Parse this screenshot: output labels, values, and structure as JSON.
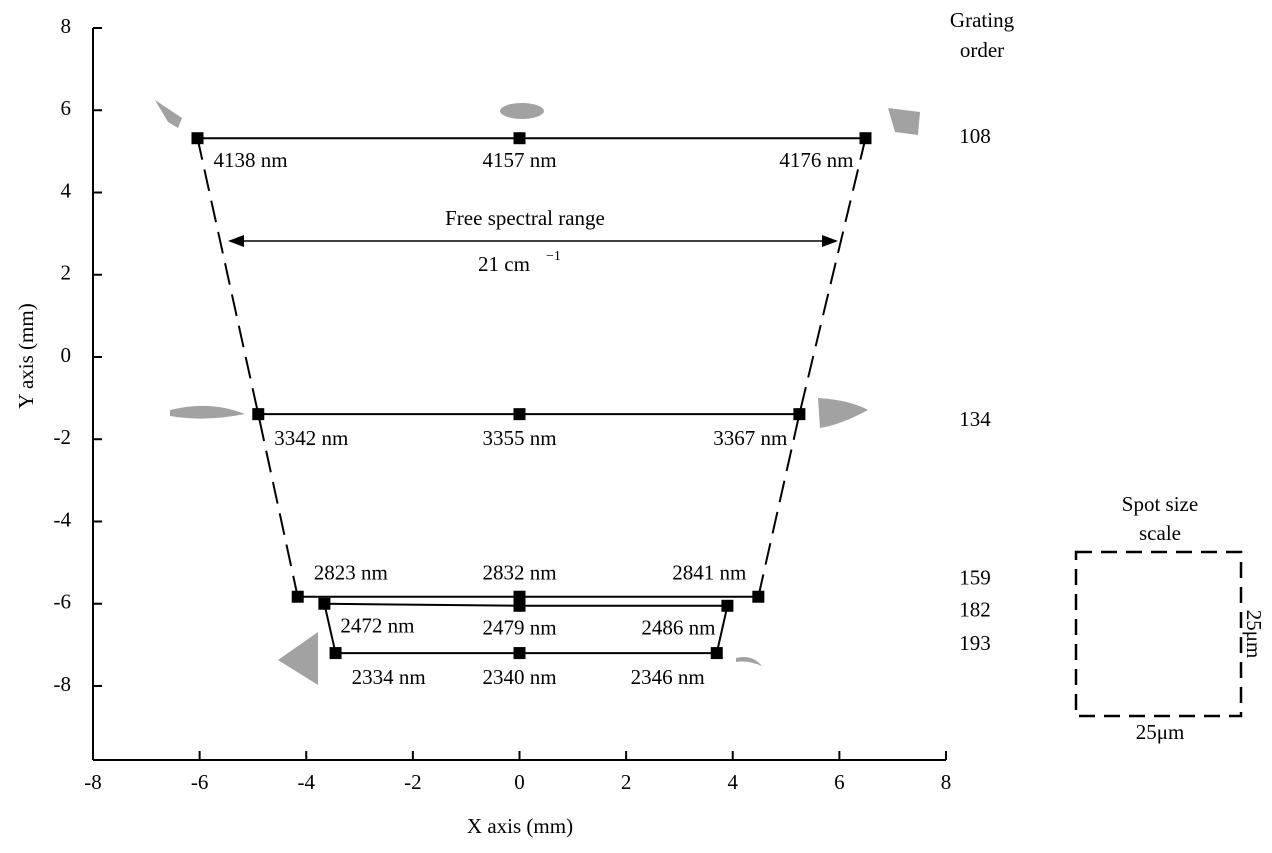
{
  "chart_data": {
    "type": "line",
    "x_label": "X axis (mm)",
    "y_label": "Y axis (mm)",
    "xlim": [
      -8,
      8
    ],
    "ylim": [
      -9.8,
      8
    ],
    "xticks": [
      -8,
      -6,
      -4,
      -2,
      0,
      2,
      4,
      6,
      8
    ],
    "yticks": [
      8,
      6,
      4,
      2,
      0,
      -2,
      -4,
      -6,
      -8
    ],
    "color": "#000000",
    "order_heading": [
      "Grating",
      "order"
    ],
    "series": [
      {
        "name": "108",
        "x": [
          -6.04,
          0,
          6.49
        ],
        "values": [
          5.32,
          5.32,
          5.32
        ],
        "point_labels": [
          "4138 nm",
          "4157 nm",
          "4176 nm"
        ]
      },
      {
        "name": "134",
        "x": [
          -4.9,
          0,
          5.25
        ],
        "values": [
          -1.39,
          -1.39,
          -1.39
        ],
        "point_labels": [
          "3342 nm",
          "3355 nm",
          "3367 nm"
        ]
      },
      {
        "name": "159",
        "x": [
          -4.16,
          0,
          4.48
        ],
        "values": [
          -5.83,
          -5.83,
          -5.83
        ],
        "point_labels": [
          "2823 nm",
          "2832 nm",
          "2841 nm"
        ]
      },
      {
        "name": "182",
        "x": [
          -3.66,
          0,
          3.9
        ],
        "values": [
          -6.0,
          -6.05,
          -6.05
        ],
        "point_labels": [
          "2472 nm",
          "2479 nm",
          "2486 nm"
        ]
      },
      {
        "name": "193",
        "x": [
          -3.45,
          0,
          3.7
        ],
        "values": [
          -7.2,
          -7.2,
          -7.2
        ],
        "point_labels": [
          "2334 nm",
          "2340 nm",
          "2346 nm"
        ]
      }
    ],
    "annotations": {
      "range_title": "Free spectral range",
      "range_value": "21 cm",
      "range_unit_exp": "−1"
    },
    "scale_box": {
      "title": [
        "Spot size",
        "scale"
      ],
      "width_label": "25μm",
      "height_label": "25μm"
    }
  }
}
